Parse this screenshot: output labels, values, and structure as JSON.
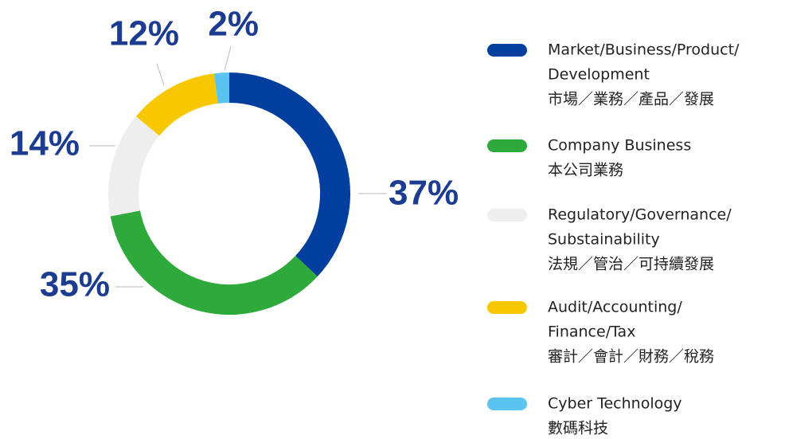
{
  "chart_data": {
    "type": "donut",
    "categories": [
      [
        "Market/Business/Product/",
        "Development",
        "市場／業務／產品／發展"
      ],
      [
        "Company Business",
        "本公司業務"
      ],
      [
        "Regulatory/Governance/",
        "Substainability",
        "法規／管治／可持續發展"
      ],
      [
        "Audit/Accounting/",
        "Finance/Tax",
        "審計／會計／財務／稅務"
      ],
      [
        "Cyber Technology",
        "數碼科技"
      ]
    ],
    "values": [
      37,
      35,
      14,
      12,
      2
    ],
    "value_labels": [
      "37%",
      "35%",
      "14%",
      "12%",
      "2%"
    ],
    "colors": [
      "#003f9e",
      "#2eaa3c",
      "#eeeeee",
      "#f7c800",
      "#5bc3ef"
    ]
  }
}
